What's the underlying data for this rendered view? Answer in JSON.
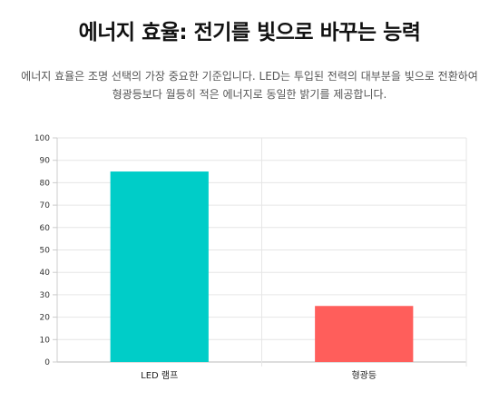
{
  "header": {
    "title": "에너지 효율: 전기를 빛으로 바꾸는 능력",
    "subtitle": "에너지 효율은 조명 선택의 가장 중요한 기준입니다. LED는 투입된 전력의 대부분을 빛으로 전환하여 형광등보다 월등히 적은 에너지로 동일한 밝기를 제공합니다."
  },
  "chart_data": {
    "type": "bar",
    "categories": [
      "LED 램프",
      "형광등"
    ],
    "values": [
      85,
      25
    ],
    "colors": [
      "#00cdc8",
      "#ff5e5b"
    ],
    "ylim": [
      0,
      100
    ],
    "yticks": [
      0,
      10,
      20,
      30,
      40,
      50,
      60,
      70,
      80,
      90,
      100
    ],
    "grid": true,
    "legend": "none"
  }
}
